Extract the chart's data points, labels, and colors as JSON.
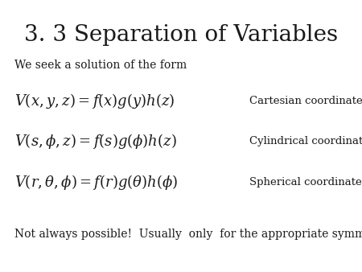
{
  "title": "3. 3 Separation of Variables",
  "title_fontsize": 20,
  "bg_color": "#ffffff",
  "text_color": "#1a1a1a",
  "intro_text": "We seek a solution of the form",
  "intro_fontsize": 10,
  "eq1_latex": "$V(x,y,z) = f(x)g(y)h(z)$",
  "eq1_label": "Cartesian coordinates",
  "eq2_latex": "$V(s,\\phi,z) = f(s)g(\\phi)h(z)$",
  "eq2_label": "Cylindrical coordinates",
  "eq3_latex": "$V(r,\\theta,\\phi) = f(r)g(\\theta)h(\\phi)$",
  "eq3_label": "Spherical coordinates",
  "eq_fontsize": 13,
  "label_fontsize": 9.5,
  "footer_text": "Not always possible!  Usually  only  for the appropriate symmetry.",
  "footer_fontsize": 10
}
